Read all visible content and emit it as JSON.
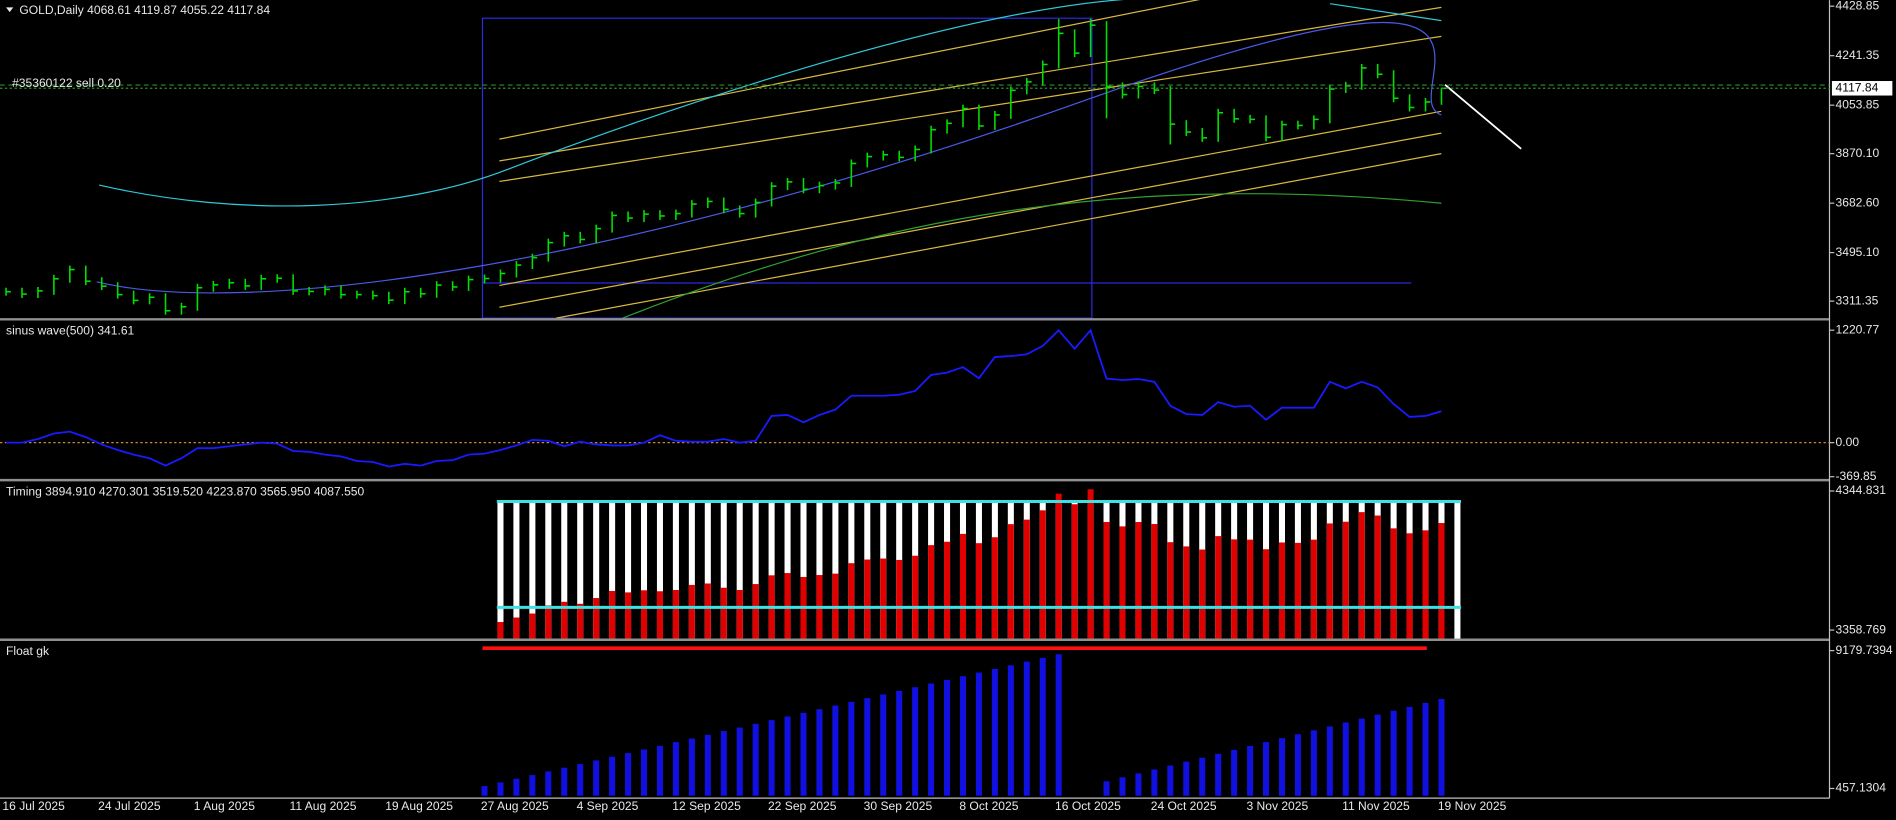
{
  "chart_data": [
    {
      "type": "ohlc",
      "title": "GOLD,Daily  4068.61 4119.87 4055.22 4117.84",
      "color": "#00e000",
      "ylim": [
        3247,
        4452
      ],
      "yticks": [
        4428.85,
        4241.35,
        4053.85,
        {
          "value": 3870.1,
          "label": "3870.10"
        },
        {
          "value": 3682.6,
          "label": "3682.60"
        },
        {
          "value": 3495.1,
          "label": "3495.10"
        },
        3311.35
      ],
      "last_price": 4117.84,
      "order": {
        "label": "#35360122 sell 0.20",
        "price": 4130
      },
      "categories": [
        "16 Jul 2025",
        null,
        null,
        null,
        null,
        null,
        "24 Jul 2025",
        null,
        null,
        null,
        null,
        null,
        "1 Aug 2025",
        null,
        null,
        null,
        null,
        null,
        "11 Aug 2025",
        null,
        null,
        null,
        null,
        null,
        "19 Aug 2025",
        null,
        null,
        null,
        null,
        null,
        "27 Aug 2025",
        null,
        null,
        null,
        null,
        null,
        "4 Sep 2025",
        null,
        null,
        null,
        null,
        null,
        "12 Sep 2025",
        null,
        null,
        null,
        null,
        null,
        "22 Sep 2025",
        null,
        null,
        null,
        null,
        null,
        "30 Sep 2025",
        null,
        null,
        null,
        null,
        null,
        "8 Oct 2025",
        null,
        null,
        null,
        null,
        null,
        "16 Oct 2025",
        null,
        null,
        null,
        null,
        null,
        "24 Oct 2025",
        null,
        null,
        null,
        null,
        null,
        "3 Nov 2025",
        null,
        null,
        null,
        null,
        null,
        "11 Nov 2025",
        null,
        null,
        null,
        null,
        null,
        "19 Nov 2025"
      ],
      "high": [
        3362,
        3362,
        3365,
        3411,
        3446,
        3446,
        3402,
        3383,
        3351,
        3341,
        3341,
        3305,
        3377,
        3388,
        3396,
        3396,
        3411,
        3413,
        3413,
        3365,
        3371,
        3371,
        3351,
        3351,
        3347,
        3362,
        3362,
        3387,
        3387,
        3408,
        3412,
        3431,
        3463,
        3491,
        3548,
        3574,
        3574,
        3601,
        3651,
        3651,
        3656,
        3656,
        3658,
        3694,
        3704,
        3704,
        3674,
        3700,
        3762,
        3778,
        3778,
        3764,
        3774,
        3848,
        3874,
        3881,
        3881,
        3901,
        3976,
        4000,
        4056,
        4056,
        4032,
        4125,
        4157,
        4223,
        4380,
        4341,
        4381,
        4372,
        4140,
        4140,
        4140,
        4126,
        3997,
        3967,
        4040,
        4040,
        4017,
        4015,
        3995,
        3995,
        4015,
        4130,
        4142,
        4210,
        4210,
        4186,
        4095,
        4081,
        4119.87
      ],
      "low": [
        3332,
        3323,
        3323,
        3335,
        3381,
        3372,
        3353,
        3321,
        3299,
        3299,
        3260,
        3260,
        3275,
        3347,
        3358,
        3354,
        3354,
        3381,
        3335,
        3333,
        3333,
        3321,
        3321,
        3317,
        3300,
        3300,
        3324,
        3324,
        3350,
        3350,
        3378,
        3382,
        3401,
        3433,
        3461,
        3518,
        3530,
        3530,
        3571,
        3611,
        3611,
        3619,
        3619,
        3628,
        3664,
        3644,
        3628,
        3628,
        3670,
        3732,
        3720,
        3720,
        3734,
        3744,
        3818,
        3844,
        3841,
        3841,
        3871,
        3946,
        3970,
        3960,
        3960,
        4002,
        4095,
        4127,
        4193,
        4236,
        4236,
        4004,
        4079,
        4079,
        4096,
        3905,
        3937,
        3915,
        3915,
        3987,
        3985,
        3917,
        3917,
        3962,
        3962,
        3985,
        4100,
        4112,
        4156,
        4065,
        4030,
        4030,
        4055.22
      ],
      "close": [
        3347,
        3338,
        3350,
        3396,
        3431,
        3387,
        3368,
        3336,
        3314,
        3326,
        3275,
        3290,
        3362,
        3373,
        3381,
        3369,
        3396,
        3398,
        3350,
        3348,
        3356,
        3336,
        3336,
        3332,
        3315,
        3347,
        3339,
        3372,
        3365,
        3393,
        3397,
        3416,
        3448,
        3476,
        3533,
        3559,
        3545,
        3586,
        3636,
        3626,
        3641,
        3634,
        3643,
        3679,
        3689,
        3659,
        3643,
        3685,
        3747,
        3763,
        3735,
        3749,
        3759,
        3833,
        3859,
        3866,
        3856,
        3886,
        3961,
        3985,
        4041,
        3975,
        4017,
        4110,
        4142,
        4208,
        4326,
        4251,
        4357,
        4125,
        4094,
        4125,
        4111,
        3982,
        3952,
        3930,
        4025,
        4002,
        4000,
        3932,
        3980,
        3977,
        4000,
        4115,
        4127,
        4195,
        4171,
        4080,
        4045,
        4066,
        4117.84
      ]
    },
    {
      "type": "line",
      "title": "sinus wave(500) 341.61",
      "color": "#1a1aff",
      "ylim": [
        -407,
        1326
      ],
      "yticks": [
        1220.77,
        {
          "value": 0,
          "label": "0.00"
        },
        -369.85
      ],
      "zero_line": {
        "value": 0,
        "color": "#c8883a"
      },
      "values": [
        0,
        0,
        40,
        100,
        120,
        60,
        -20,
        -80,
        -130,
        -170,
        -250,
        -170,
        -60,
        -60,
        -40,
        -20,
        0,
        -10,
        -90,
        -100,
        -130,
        -150,
        -200,
        -210,
        -260,
        -230,
        -250,
        -200,
        -190,
        -130,
        -120,
        -80,
        -30,
        30,
        20,
        -40,
        10,
        -20,
        -30,
        -30,
        0,
        80,
        20,
        10,
        10,
        40,
        0,
        20,
        290,
        300,
        220,
        300,
        360,
        510,
        510,
        510,
        520,
        560,
        735,
        760,
        820,
        700,
        930,
        940,
        960,
        1050,
        1220,
        1020,
        1220,
        695,
        680,
        690,
        660,
        400,
        310,
        300,
        440,
        390,
        400,
        250,
        380,
        380,
        380,
        660,
        590,
        660,
        600,
        420,
        280,
        290,
        341.61
      ]
    },
    {
      "type": "bar",
      "title": "Timing 3894.910 4270.301 3519.520 4223.870 3565.950 4087.550",
      "ylim": [
        3298.8,
        4413.4
      ],
      "yticks": [
        4344.831,
        3358.769
      ],
      "levels": [
        {
          "value": 4270.301,
          "color": "#3fe0e0"
        },
        {
          "value": 3519.52,
          "color": "#3fe0e0"
        }
      ],
      "series": [
        {
          "color": "#ffffff",
          "values": [
            null,
            null,
            null,
            null,
            null,
            null,
            null,
            null,
            null,
            null,
            null,
            null,
            null,
            null,
            null,
            null,
            null,
            null,
            null,
            null,
            null,
            null,
            null,
            null,
            null,
            null,
            null,
            null,
            null,
            null,
            null,
            4270.301,
            4270.301,
            4270.301,
            4270.301,
            4270.301,
            4270.301,
            4270.301,
            4270.301,
            4270.301,
            4270.301,
            4270.301,
            4270.301,
            4270.301,
            4270.301,
            4270.301,
            4270.301,
            4270.301,
            4270.301,
            4270.301,
            4270.301,
            4270.301,
            4270.301,
            4270.301,
            4270.301,
            4270.301,
            4270.301,
            4270.301,
            4270.301,
            4270.301,
            4270.301,
            4270.301,
            4270.301,
            4270.301,
            4270.301,
            4270.301,
            4270.301,
            4270.301,
            4270.301,
            4270.301,
            4270.301,
            4270.301,
            4270.301,
            4270.301,
            4270.301,
            4270.301,
            4270.301,
            4270.301,
            4270.301,
            4270.301,
            4270.301,
            4270.301,
            4270.301,
            4270.301,
            4270.301,
            4270.301,
            4270.301,
            4270.301,
            4270.301,
            4270.301,
            4270.301,
            4270.301
          ]
        },
        {
          "color": "#e00000",
          "values": [
            null,
            null,
            null,
            null,
            null,
            null,
            null,
            null,
            null,
            null,
            null,
            null,
            null,
            null,
            null,
            null,
            null,
            null,
            null,
            null,
            null,
            null,
            null,
            null,
            null,
            null,
            null,
            null,
            null,
            null,
            null,
            3416,
            3448,
            3476,
            3533,
            3559,
            3545,
            3586,
            3636,
            3626,
            3641,
            3634,
            3643,
            3679,
            3689,
            3659,
            3643,
            3685,
            3747,
            3763,
            3735,
            3749,
            3759,
            3833,
            3859,
            3866,
            3856,
            3886,
            3961,
            3985,
            4041,
            3975,
            4017,
            4110,
            4142,
            4208,
            4326,
            4251,
            4357,
            4125,
            4094,
            4125,
            4111,
            3982,
            3952,
            3930,
            4025,
            4002,
            4000,
            3932,
            3980,
            3977,
            4000,
            4115,
            4127,
            4195,
            4171,
            4080,
            4045,
            4066,
            4117.84
          ]
        }
      ]
    },
    {
      "type": "bar",
      "title": "Float gk",
      "ylim": [
        -155,
        9792
      ],
      "yticks": [
        9179.7394,
        457.1304
      ],
      "series": [
        {
          "color": "#1010e0",
          "values": [
            null,
            null,
            null,
            null,
            null,
            null,
            null,
            null,
            null,
            null,
            null,
            null,
            null,
            null,
            null,
            null,
            null,
            null,
            null,
            null,
            null,
            null,
            null,
            null,
            null,
            null,
            null,
            null,
            null,
            null,
            610,
            842,
            1073,
            1305,
            1537,
            1769,
            2000,
            2232,
            2464,
            2695,
            2927,
            3159,
            3390,
            3622,
            3854,
            4086,
            4317,
            4549,
            4781,
            5012,
            5244,
            5476,
            5707,
            5939,
            6171,
            6403,
            6634,
            6866,
            7098,
            7329,
            7561,
            7793,
            8024,
            8256,
            8488,
            8720,
            8951,
            null,
            null,
            916,
            1164,
            1411,
            1659,
            1907,
            2155,
            2402,
            2650,
            2898,
            3146,
            3393,
            3641,
            3889,
            4137,
            4384,
            4632,
            4880,
            5128,
            5375,
            5623,
            5871,
            6118
          ]
        }
      ]
    }
  ]
}
